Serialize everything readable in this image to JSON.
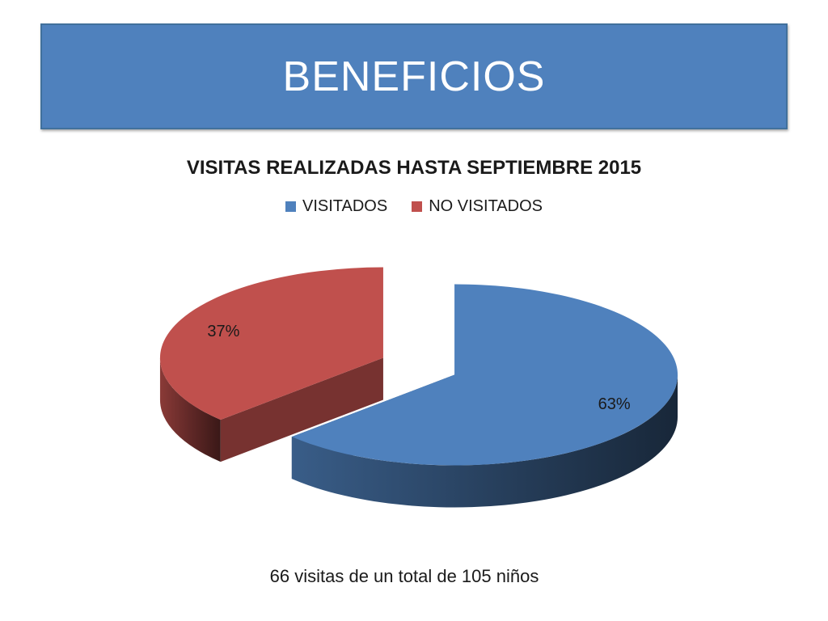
{
  "slide": {
    "title": "BENEFICIOS",
    "banner_color": "#4f81bd",
    "caption": "66 visitas de un total de 105 niños"
  },
  "chart_data": {
    "type": "pie",
    "title": "VISITAS REALIZADAS HASTA SEPTIEMBRE 2015",
    "legend_position": "top",
    "style": "3d-exploded",
    "slices": [
      {
        "name": "VISITADOS",
        "value": 63,
        "label": "63%",
        "color": "#4f81bd"
      },
      {
        "name": "NO VISITADOS",
        "value": 37,
        "label": "37%",
        "color": "#c0504d"
      }
    ]
  }
}
